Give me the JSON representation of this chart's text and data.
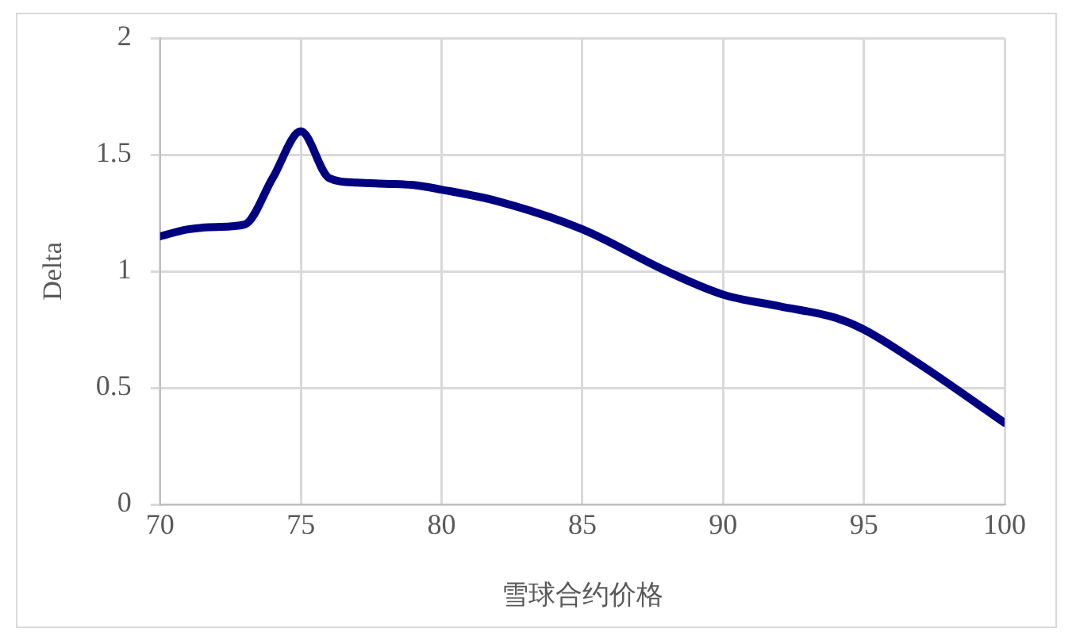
{
  "chart_data": {
    "type": "line",
    "xlabel": "雪球合约价格",
    "ylabel": "Delta",
    "series": [
      {
        "color": "#000080",
        "x": [
          70,
          71,
          72,
          73,
          74,
          75,
          76,
          77,
          78,
          79,
          80,
          82,
          85,
          88,
          90,
          92,
          94,
          95,
          97,
          100
        ],
        "values": [
          1.15,
          1.18,
          1.19,
          1.2,
          1.4,
          1.6,
          1.4,
          1.38,
          1.375,
          1.37,
          1.35,
          1.3,
          1.18,
          1.0,
          0.9,
          0.85,
          0.8,
          0.75,
          0.6,
          0.35
        ]
      }
    ],
    "xlim": [
      70,
      100
    ],
    "xticks": [
      70,
      75,
      80,
      85,
      90,
      95,
      100
    ],
    "ylim": [
      0,
      2
    ],
    "yticks": [
      0,
      0.5,
      1,
      1.5,
      2
    ],
    "grid": true,
    "legend": false,
    "marker": "none",
    "line_style": "solid"
  }
}
